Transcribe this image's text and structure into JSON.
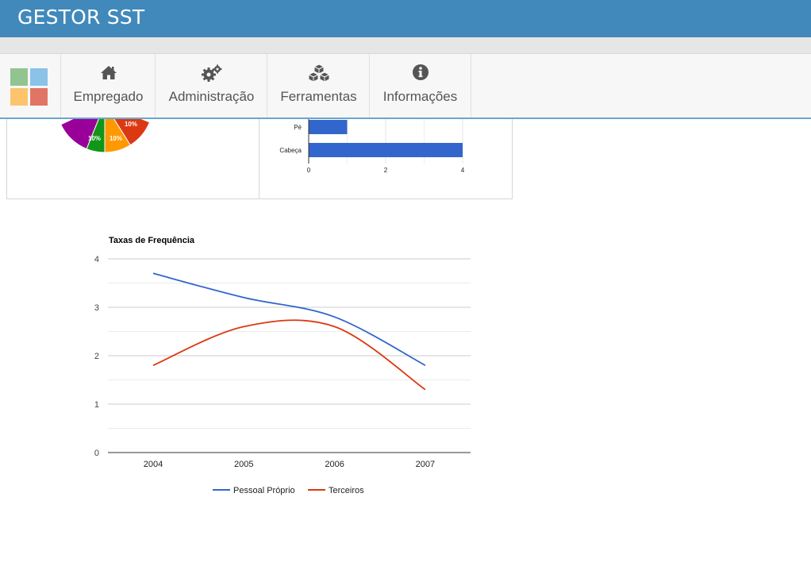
{
  "app": {
    "title": "GESTOR SST"
  },
  "nav": {
    "items": [
      {
        "label": "Empregado",
        "icon": "home-icon"
      },
      {
        "label": "Administração",
        "icon": "gears-icon"
      },
      {
        "label": "Ferramentas",
        "icon": "cubes-icon"
      },
      {
        "label": "Informações",
        "icon": "info-icon"
      }
    ]
  },
  "colors": {
    "header": "#4189bb",
    "series1": "#3366cc",
    "series2": "#dc3912"
  },
  "pie_chart": {
    "type": "pie",
    "visible_slice_labels": [
      "10%",
      "10%",
      "10%"
    ],
    "slice_colors": [
      "#990099",
      "#109618",
      "#ff9900",
      "#dc3912"
    ]
  },
  "bar_chart": {
    "type": "bar",
    "categories": [
      "Pé",
      "Cabeça"
    ],
    "values": [
      1,
      4
    ],
    "xticks": [
      "0",
      "2",
      "4"
    ],
    "xlim": [
      0,
      4
    ]
  },
  "chart_data": {
    "type": "line",
    "title": "Taxas de Frequência",
    "x": [
      "2004",
      "2005",
      "2006",
      "2007"
    ],
    "series": [
      {
        "name": "Pessoal Próprio",
        "values": [
          3.7,
          3.2,
          2.8,
          1.8
        ]
      },
      {
        "name": "Terceiros",
        "values": [
          1.8,
          2.6,
          2.6,
          1.3
        ]
      }
    ],
    "yticks": [
      "0",
      "1",
      "2",
      "3",
      "4"
    ],
    "ylim": [
      0,
      4
    ],
    "grid": true,
    "legend": "bottom"
  }
}
